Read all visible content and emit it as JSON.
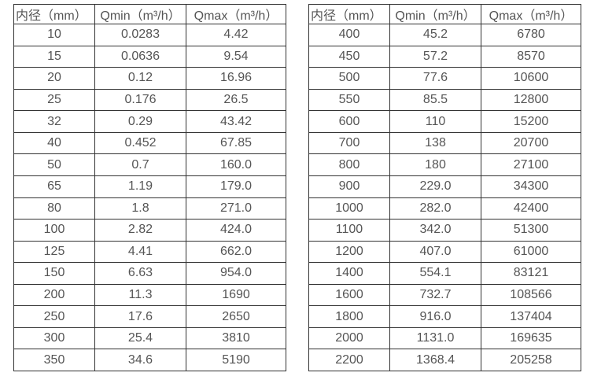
{
  "chart_data": [
    {
      "type": "table",
      "title": "flow-spec-small-diameters",
      "columns": [
        "内径（mm）",
        "Qmin（m³/h）",
        "Qmax（m³/h）"
      ],
      "rows": [
        [
          "10",
          "0.0283",
          "4.42"
        ],
        [
          "15",
          "0.0636",
          "9.54"
        ],
        [
          "20",
          "0.12",
          "16.96"
        ],
        [
          "25",
          "0.176",
          "26.5"
        ],
        [
          "32",
          "0.29",
          "43.42"
        ],
        [
          "40",
          "0.452",
          "67.85"
        ],
        [
          "50",
          "0.7",
          "160.0"
        ],
        [
          "65",
          "1.19",
          "179.0"
        ],
        [
          "80",
          "1.8",
          "271.0"
        ],
        [
          "100",
          "2.82",
          "424.0"
        ],
        [
          "125",
          "4.41",
          "662.0"
        ],
        [
          "150",
          "6.63",
          "954.0"
        ],
        [
          "200",
          "11.3",
          "1690"
        ],
        [
          "250",
          "17.6",
          "2650"
        ],
        [
          "300",
          "25.4",
          "3810"
        ],
        [
          "350",
          "34.6",
          "5190"
        ]
      ]
    },
    {
      "type": "table",
      "title": "flow-spec-large-diameters",
      "columns": [
        "内径（mm）",
        "Qmin（m³/h）",
        "Qmax（m³/h）"
      ],
      "rows": [
        [
          "400",
          "45.2",
          "6780"
        ],
        [
          "450",
          "57.2",
          "8570"
        ],
        [
          "500",
          "77.6",
          "10600"
        ],
        [
          "550",
          "85.5",
          "12800"
        ],
        [
          "600",
          "110",
          "15200"
        ],
        [
          "700",
          "138",
          "20700"
        ],
        [
          "800",
          "180",
          "27100"
        ],
        [
          "900",
          "229.0",
          "34300"
        ],
        [
          "1000",
          "282.0",
          "42400"
        ],
        [
          "1100",
          "342.0",
          "51300"
        ],
        [
          "1200",
          "407.0",
          "61000"
        ],
        [
          "1400",
          "554.1",
          "83121"
        ],
        [
          "1600",
          "732.7",
          "108566"
        ],
        [
          "1800",
          "916.0",
          "137404"
        ],
        [
          "2000",
          "1131.0",
          "169635"
        ],
        [
          "2200",
          "1368.4",
          "205258"
        ]
      ]
    }
  ],
  "colors": {
    "background": "#ffffff",
    "border": "#333333",
    "text": "#555555"
  }
}
